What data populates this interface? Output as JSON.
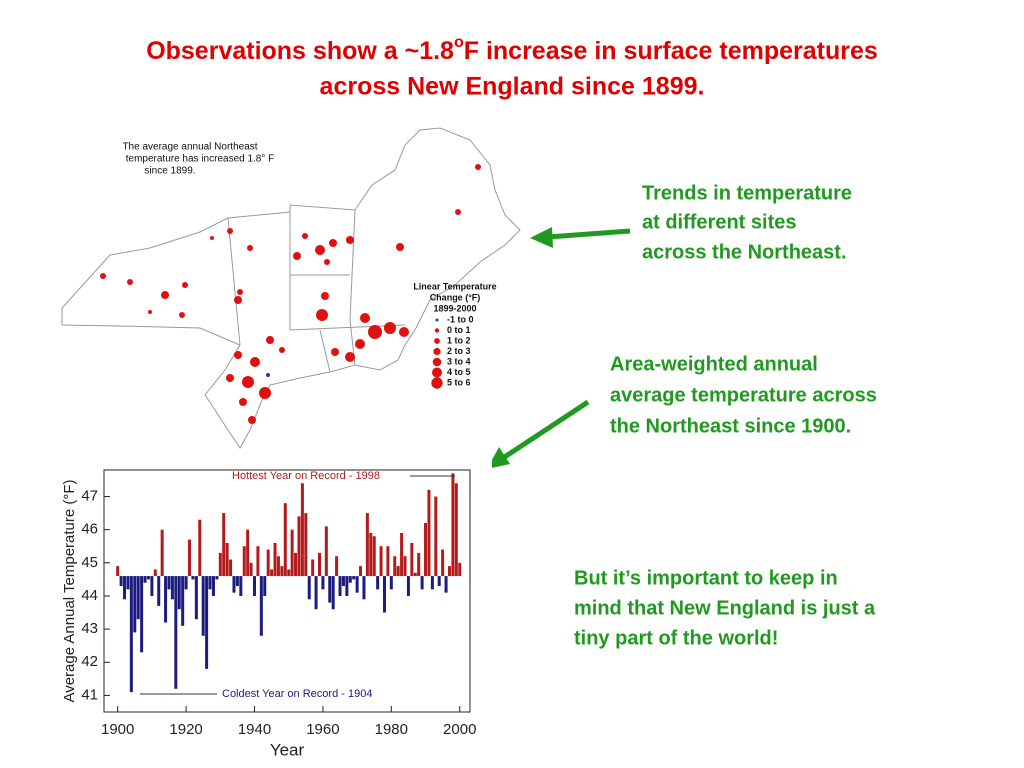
{
  "title": {
    "line1": [
      "Observations show a ~1.8",
      "o",
      "F increase in surface temperatures"
    ],
    "line2": "across New England since 1899."
  },
  "map": {
    "note": [
      "The average annual Northeast",
      "temperature has increased 1.8° F",
      "since 1899."
    ],
    "legend": {
      "title": [
        "Linear Temperature",
        "Change (°F)",
        "1899-2000"
      ],
      "entries": [
        "-1  to  0",
        "0  to  1",
        "1  to  2",
        "2  to  3",
        "3  to  4",
        "4  to  5",
        "5  to  6"
      ]
    }
  },
  "annotations": [
    [
      "Trends in temperature",
      "at different sites",
      "across the Northeast."
    ],
    [
      "Area-weighted annual",
      "average temperature across",
      "the Northeast since 1900."
    ],
    [
      "But it’s important to keep in",
      "mind that New England is just a",
      "tiny part of the world!"
    ]
  ],
  "chart_data": {
    "type": "bar",
    "x_label": "Year",
    "y_label": "Average Annual Temperature (°F)",
    "hottest_label": "Hottest Year on Record - 1998",
    "coldest_label": "Coldest Year on Record  - 1904",
    "x": [
      1900,
      1901,
      1902,
      1903,
      1904,
      1905,
      1906,
      1907,
      1908,
      1909,
      1910,
      1911,
      1912,
      1913,
      1914,
      1915,
      1916,
      1917,
      1918,
      1919,
      1920,
      1921,
      1922,
      1923,
      1924,
      1925,
      1926,
      1927,
      1928,
      1929,
      1930,
      1931,
      1932,
      1933,
      1934,
      1935,
      1936,
      1937,
      1938,
      1939,
      1940,
      1941,
      1942,
      1943,
      1944,
      1945,
      1946,
      1947,
      1948,
      1949,
      1950,
      1951,
      1952,
      1953,
      1954,
      1955,
      1956,
      1957,
      1958,
      1959,
      1960,
      1961,
      1962,
      1963,
      1964,
      1965,
      1966,
      1967,
      1968,
      1969,
      1970,
      1971,
      1972,
      1973,
      1974,
      1975,
      1976,
      1977,
      1978,
      1979,
      1980,
      1981,
      1982,
      1983,
      1984,
      1985,
      1986,
      1987,
      1988,
      1989,
      1990,
      1991,
      1992,
      1993,
      1994,
      1995,
      1996,
      1997,
      1998,
      1999,
      2000
    ],
    "values": [
      44.9,
      44.3,
      43.9,
      44.2,
      41.1,
      42.9,
      43.3,
      42.3,
      44.4,
      44.5,
      44.0,
      44.8,
      43.7,
      46.0,
      43.2,
      44.2,
      43.9,
      41.2,
      43.6,
      43.1,
      44.2,
      45.7,
      44.5,
      43.3,
      46.3,
      42.8,
      41.8,
      44.2,
      44.0,
      44.5,
      45.3,
      46.5,
      45.6,
      45.1,
      44.1,
      44.3,
      44.0,
      45.5,
      46.0,
      45.0,
      44.0,
      45.5,
      42.8,
      44.0,
      45.4,
      44.8,
      45.6,
      45.2,
      44.9,
      46.8,
      44.8,
      46.0,
      45.3,
      46.4,
      47.4,
      46.5,
      43.9,
      45.1,
      43.6,
      45.3,
      44.2,
      46.1,
      43.8,
      43.6,
      45.2,
      44.0,
      44.3,
      44.0,
      44.4,
      44.5,
      44.1,
      44.9,
      43.9,
      46.5,
      45.9,
      45.8,
      44.2,
      45.5,
      43.5,
      45.5,
      44.2,
      45.2,
      44.9,
      45.9,
      45.2,
      44.0,
      45.6,
      44.7,
      45.3,
      44.2,
      46.2,
      47.2,
      44.2,
      47.0,
      44.3,
      45.4,
      44.1,
      44.9,
      47.7,
      47.4,
      45.0
    ],
    "baseline": 44.6,
    "color_above": "#b31b1b",
    "color_below": "#1c1c80",
    "xlim": [
      1896,
      2003
    ],
    "xticks": [
      1900,
      1920,
      1940,
      1960,
      1980,
      2000
    ],
    "ylim": [
      40.5,
      47.8
    ],
    "yticks": [
      41,
      42,
      43,
      44,
      45,
      46,
      47
    ]
  }
}
